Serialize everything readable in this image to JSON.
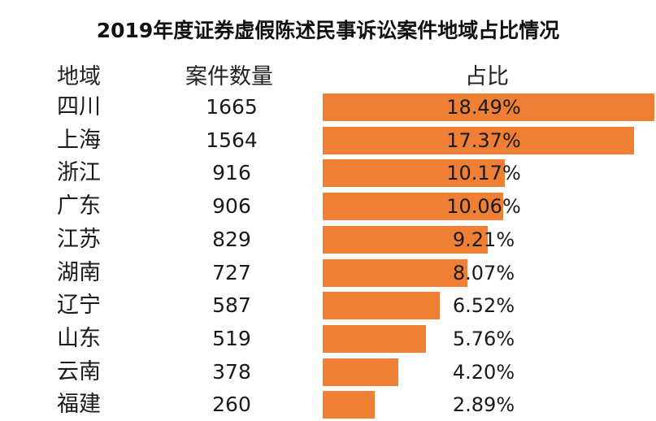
{
  "chart_data": {
    "type": "table",
    "title": "2019年度证券虚假陈述民事诉讼案件地域占比情况",
    "columns": [
      "地域",
      "案件数量",
      "占比"
    ],
    "bar_color": "#ef7f34",
    "rows": [
      {
        "region": "四川",
        "count": "1665",
        "pct": "18.49%",
        "value": 18.49
      },
      {
        "region": "上海",
        "count": "1564",
        "pct": "17.37%",
        "value": 17.37
      },
      {
        "region": "浙江",
        "count": "916",
        "pct": "10.17%",
        "value": 10.17
      },
      {
        "region": "广东",
        "count": "906",
        "pct": "10.06%",
        "value": 10.06
      },
      {
        "region": "江苏",
        "count": "829",
        "pct": "9.21%",
        "value": 9.21
      },
      {
        "region": "湖南",
        "count": "727",
        "pct": "8.07%",
        "value": 8.07
      },
      {
        "region": "辽宁",
        "count": "587",
        "pct": "6.52%",
        "value": 6.52
      },
      {
        "region": "山东",
        "count": "519",
        "pct": "5.76%",
        "value": 5.76
      },
      {
        "region": "云南",
        "count": "378",
        "pct": "4.20%",
        "value": 4.2
      },
      {
        "region": "福建",
        "count": "260",
        "pct": "2.89%",
        "value": 2.89
      }
    ]
  }
}
